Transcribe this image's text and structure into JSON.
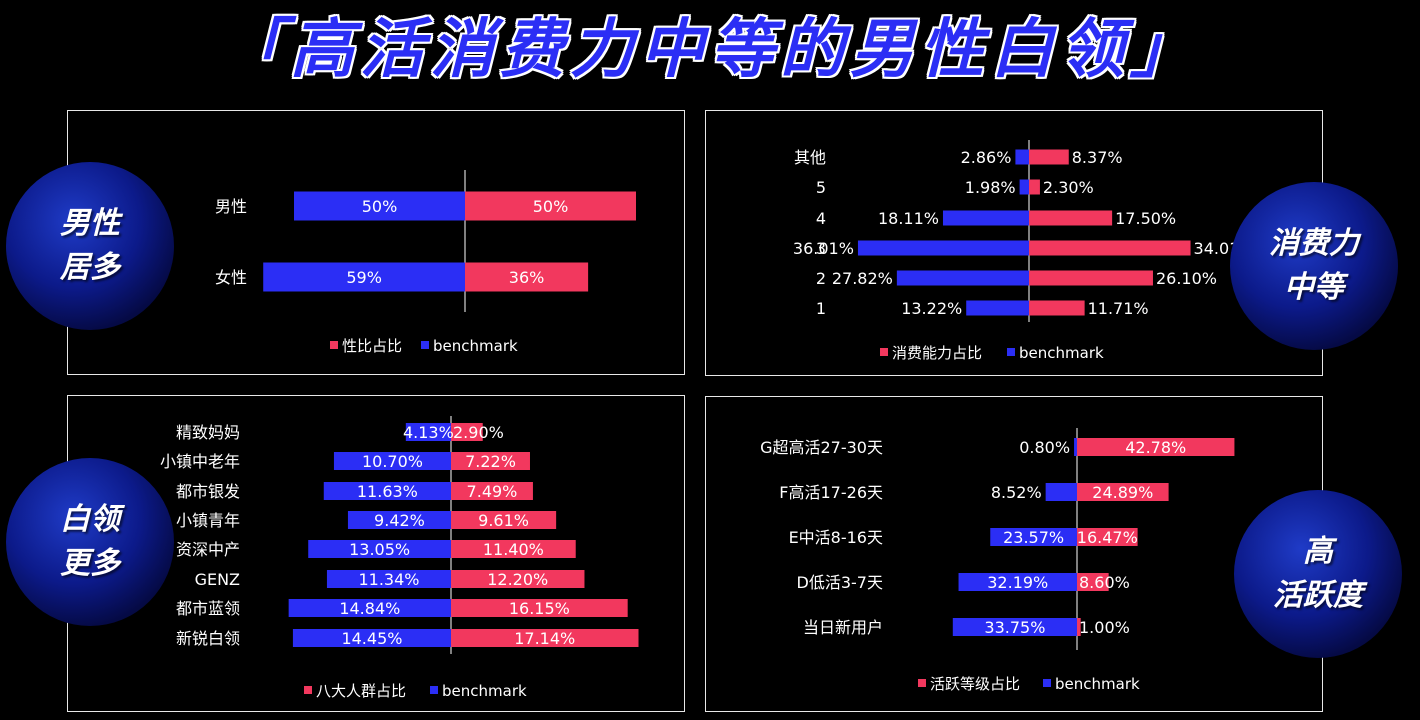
{
  "title": "「高活消费力中等的男性白领」",
  "colors": {
    "primary": "#f2385e",
    "benchmark": "#2b2ef5"
  },
  "badges": [
    {
      "line1": "男性",
      "line2": "居多"
    },
    {
      "line1": "消费力",
      "line2": "中等"
    },
    {
      "line1": "白领",
      "line2": "更多"
    },
    {
      "line1": "高",
      "line2": "活跃度"
    }
  ],
  "chart_data": [
    {
      "type": "bar",
      "orientation": "horizontal-butterfly",
      "categories": [
        "男性",
        "女性"
      ],
      "series": [
        {
          "name": "性比占比",
          "values": [
            50,
            36
          ]
        },
        {
          "name": "benchmark",
          "values": [
            50,
            59
          ]
        }
      ],
      "labels": {
        "primary": [
          "50%",
          "36%"
        ],
        "benchmark": [
          "50%",
          "59%"
        ]
      },
      "legend": "bottom"
    },
    {
      "type": "bar",
      "orientation": "horizontal-butterfly",
      "categories": [
        "其他",
        "5",
        "4",
        "3",
        "2",
        "1"
      ],
      "series": [
        {
          "name": "消费能力占比",
          "values": [
            8.37,
            2.3,
            17.5,
            34.01,
            26.1,
            11.71
          ]
        },
        {
          "name": "benchmark",
          "values": [
            2.86,
            1.98,
            18.11,
            36.01,
            27.82,
            13.22
          ]
        }
      ],
      "labels": {
        "primary": [
          "8.37%",
          "2.30%",
          "17.50%",
          "34.01%",
          "26.10%",
          "11.71%"
        ],
        "benchmark": [
          "2.86%",
          "1.98%",
          "18.11%",
          "36.01%",
          "27.82%",
          "13.22%"
        ]
      },
      "legend": "bottom"
    },
    {
      "type": "bar",
      "orientation": "horizontal-butterfly",
      "categories": [
        "精致妈妈",
        "小镇中老年",
        "都市银发",
        "小镇青年",
        "资深中产",
        "GENZ",
        "都市蓝领",
        "新锐白领"
      ],
      "series": [
        {
          "name": "八大人群占比",
          "values": [
            2.9,
            7.22,
            7.49,
            9.61,
            11.4,
            12.2,
            16.15,
            17.14
          ]
        },
        {
          "name": "benchmark",
          "values": [
            4.13,
            10.7,
            11.63,
            9.42,
            13.05,
            11.34,
            14.84,
            14.45
          ]
        }
      ],
      "labels": {
        "primary": [
          "2.90%",
          "7.22%",
          "7.49%",
          "9.61%",
          "11.40%",
          "12.20%",
          "16.15%",
          "17.14%"
        ],
        "benchmark": [
          "4.13%",
          "10.70%",
          "11.63%",
          "9.42%",
          "13.05%",
          "11.34%",
          "14.84%",
          "14.45%"
        ]
      },
      "legend": "bottom"
    },
    {
      "type": "bar",
      "orientation": "horizontal-butterfly",
      "categories": [
        "G超高活27-30天",
        "F高活17-26天",
        "E中活8-16天",
        "D低活3-7天",
        "当日新用户"
      ],
      "series": [
        {
          "name": "活跃等级占比",
          "values": [
            42.78,
            24.89,
            16.47,
            8.6,
            1.0
          ]
        },
        {
          "name": "benchmark",
          "values": [
            0.8,
            8.52,
            23.57,
            32.19,
            33.75
          ]
        }
      ],
      "labels": {
        "primary": [
          "42.78%",
          "24.89%",
          "16.47%",
          "8.60%",
          "1.00%"
        ],
        "benchmark": [
          "0.80%",
          "8.52%",
          "23.57%",
          "32.19%",
          "33.75%"
        ]
      },
      "legend": "bottom"
    }
  ]
}
